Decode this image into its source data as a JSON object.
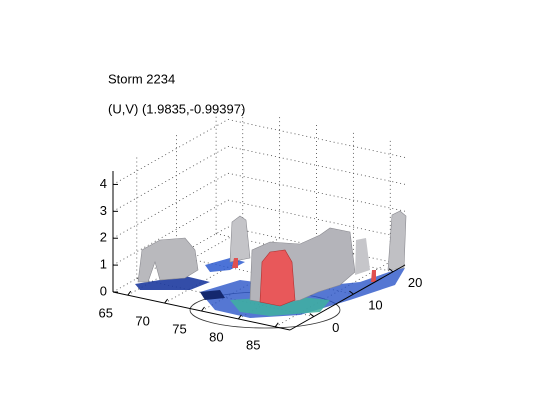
{
  "chart_data": {
    "type": "surface3d",
    "title": "Storm 2234",
    "subtitle": "(U,V) (1.9835,-0.99397)",
    "xlim": [
      63,
      87
    ],
    "ylim": [
      -6,
      23
    ],
    "zlim": [
      0,
      4.5
    ],
    "xticks": [
      65,
      70,
      75,
      80,
      85
    ],
    "yticks": [
      0,
      10,
      20
    ],
    "zticks": [
      0,
      1,
      2,
      3,
      4
    ],
    "grid": true
  }
}
